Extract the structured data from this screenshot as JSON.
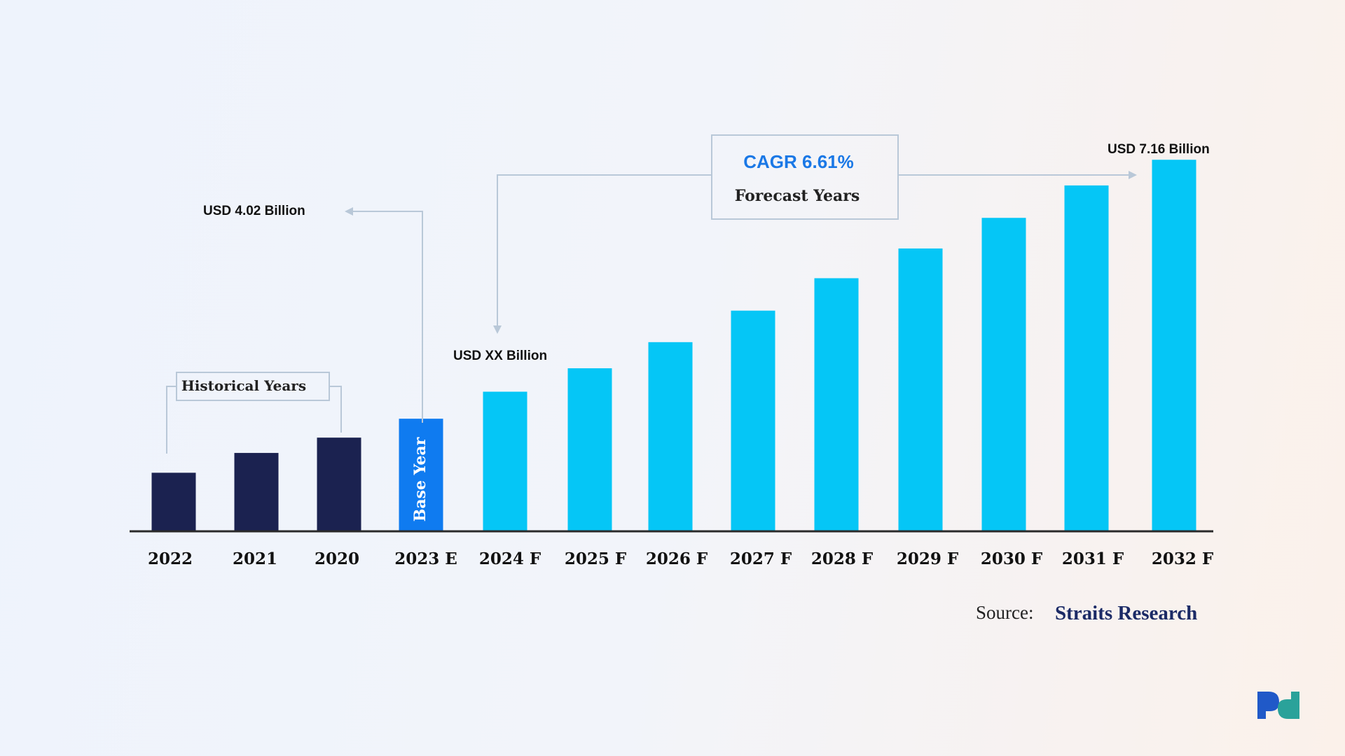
{
  "chart_data": {
    "type": "bar",
    "categories": [
      "2022",
      "2021",
      "2020",
      "2023 E",
      "2024 F",
      "2025 F",
      "2026 F",
      "2027 F",
      "2028 F",
      "2029 F",
      "2030 F",
      "2031 F",
      "2032 F"
    ],
    "values": [
      1.3,
      1.74,
      2.08,
      2.5,
      3.1,
      3.62,
      4.2,
      4.9,
      5.62,
      6.28,
      6.96,
      7.68,
      8.25
    ],
    "groups": [
      "historical",
      "historical",
      "historical",
      "base",
      "forecast",
      "forecast",
      "forecast",
      "forecast",
      "forecast",
      "forecast",
      "forecast",
      "forecast",
      "forecast"
    ],
    "ylim": [
      0,
      9
    ],
    "grid": false,
    "annotations": {
      "historical_label": "Historical Years",
      "base_year_label": "Base Year",
      "base_value_label": "USD 4.02 Billion",
      "forecast_start_label": "USD XX Billion",
      "end_value_label": "USD 7.16 Billion",
      "cagr_label": "CAGR 6.61%",
      "forecast_label": "Forecast Years"
    }
  },
  "source": {
    "label": "Source:",
    "name": "Straits Research"
  },
  "colors": {
    "historical": "#1b2250",
    "base": "#0f7bf0",
    "forecast": "#05c6f6",
    "cagr": "#1a78e6",
    "source_name": "#1b2a66",
    "connector": "#b9c8d8",
    "axis": "#2a2a2a",
    "logo_blue": "#2059c8",
    "logo_teal": "#2aa29a"
  },
  "logo": {
    "icon": "company-logo-icon"
  }
}
